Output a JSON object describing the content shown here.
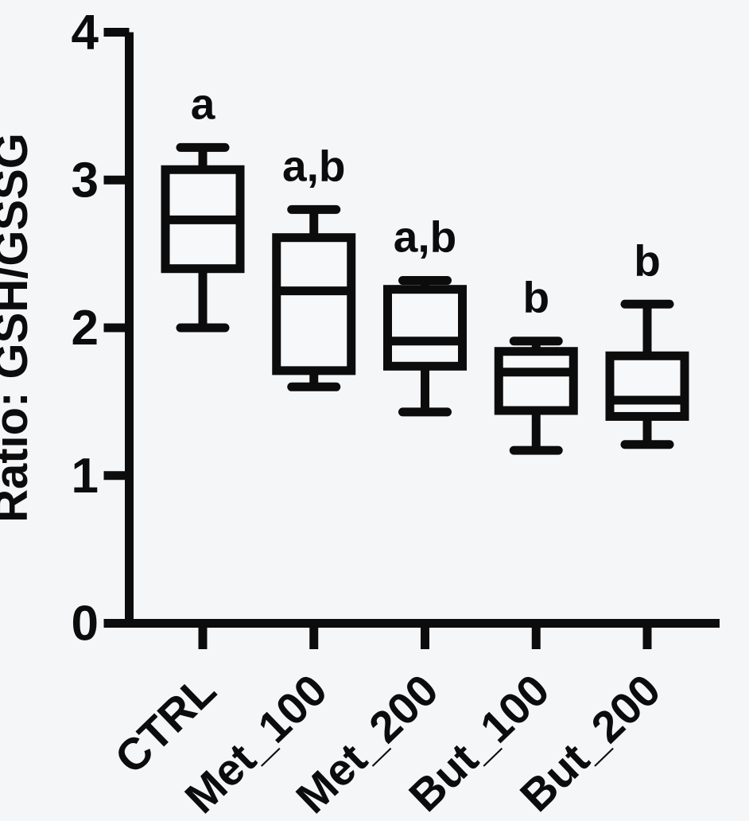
{
  "figure": {
    "background": "#f5f6f8",
    "ink": "#0c0c0c",
    "box_fill": "#f7f8fa"
  },
  "chart_data": {
    "type": "box",
    "title": "",
    "xlabel": "",
    "ylabel": "Ratio: GSH/GSSG",
    "ylim": [
      0,
      4
    ],
    "yticks": [
      0,
      1,
      2,
      3,
      4
    ],
    "grid": false,
    "legend_position": "none",
    "categories": [
      "CTRL",
      "Met_100",
      "Met_200",
      "But_100",
      "But_200"
    ],
    "groups": [
      {
        "label": "CTRL",
        "significance": "a",
        "min": 2.0,
        "q1": 2.4,
        "median": 2.73,
        "q3": 3.07,
        "max": 3.22
      },
      {
        "label": "Met_100",
        "significance": "a,b",
        "min": 1.6,
        "q1": 1.71,
        "median": 2.25,
        "q3": 2.61,
        "max": 2.8
      },
      {
        "label": "Met_200",
        "significance": "a,b",
        "min": 1.43,
        "q1": 1.74,
        "median": 1.91,
        "q3": 2.26,
        "max": 2.32
      },
      {
        "label": "But_100",
        "significance": "b",
        "min": 1.17,
        "q1": 1.44,
        "median": 1.7,
        "q3": 1.84,
        "max": 1.91
      },
      {
        "label": "But_200",
        "significance": "b",
        "min": 1.21,
        "q1": 1.4,
        "median": 1.51,
        "q3": 1.81,
        "max": 2.16
      }
    ]
  }
}
